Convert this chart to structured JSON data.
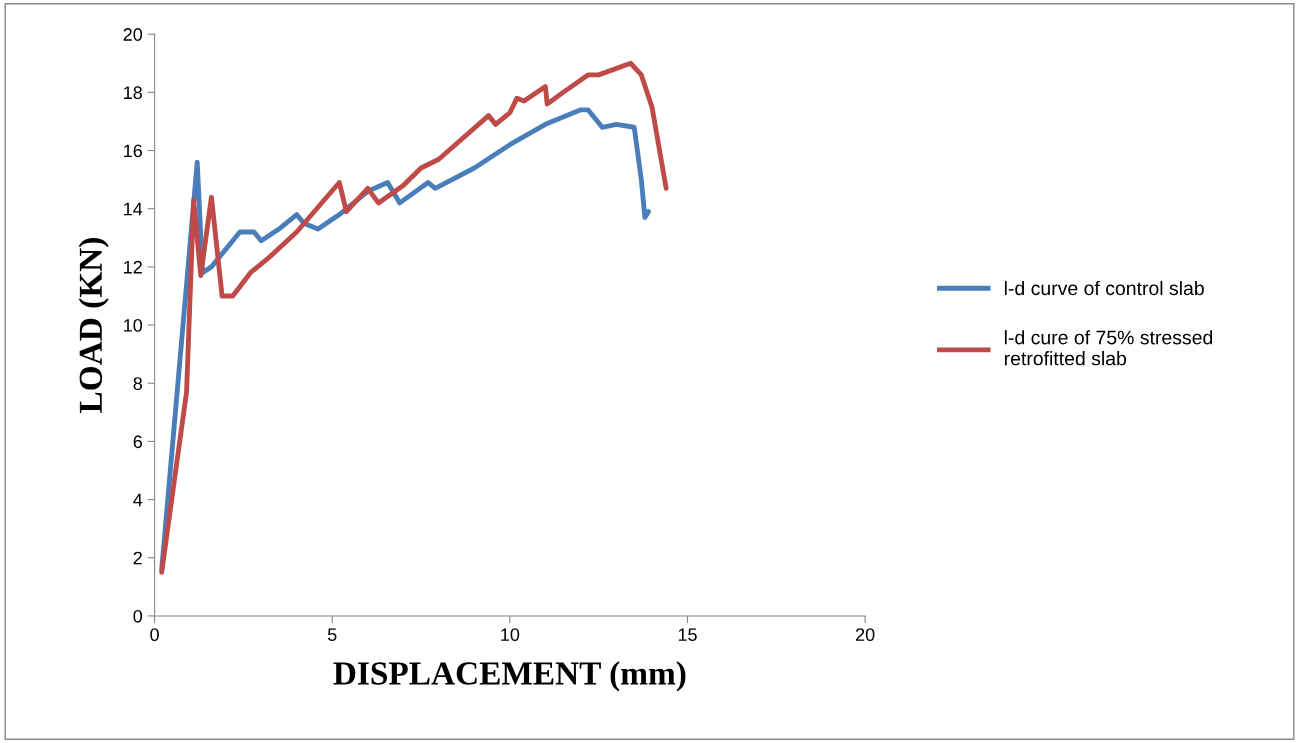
{
  "chart_data": {
    "type": "line",
    "xlabel": "DISPLACEMENT (mm)",
    "ylabel": "LOAD (KN)",
    "xlim": [
      0,
      20
    ],
    "ylim": [
      0,
      20
    ],
    "xticks": [
      0,
      5,
      10,
      15,
      20
    ],
    "yticks": [
      0,
      2,
      4,
      6,
      8,
      10,
      12,
      14,
      16,
      18,
      20
    ],
    "grid": false,
    "legend": "right",
    "marker": "none",
    "line_style": "solid",
    "series": [
      {
        "name": "l-d curve of control slab",
        "color": "#4a7ebb",
        "x": [
          0.2,
          1.2,
          1.35,
          1.6,
          2.0,
          2.4,
          2.8,
          3.0,
          3.5,
          4.0,
          4.2,
          4.6,
          5.2,
          6.0,
          6.56,
          6.9,
          7.7,
          7.9,
          9.0,
          10.0,
          11.0,
          12.0,
          12.2,
          12.6,
          13.0,
          13.5,
          13.7,
          13.8,
          13.9
        ],
        "values": [
          1.6,
          15.6,
          11.8,
          12.0,
          12.6,
          13.2,
          13.2,
          12.9,
          13.3,
          13.8,
          13.5,
          13.3,
          13.8,
          14.6,
          14.9,
          14.2,
          14.9,
          14.7,
          15.4,
          16.2,
          16.9,
          17.4,
          17.4,
          16.8,
          16.9,
          16.8,
          15.0,
          13.7,
          13.9
        ]
      },
      {
        "name": "l-d cure of 75% stressed retrofitted slab",
        "color": "#be4b48",
        "x": [
          0.2,
          0.9,
          1.1,
          1.3,
          1.6,
          1.9,
          2.2,
          2.7,
          3.2,
          4.0,
          5.2,
          5.4,
          6.0,
          6.3,
          7.0,
          7.5,
          8.0,
          9.4,
          9.6,
          10.0,
          10.2,
          10.4,
          11.0,
          11.05,
          11.5,
          12.2,
          12.5,
          13.4,
          13.7,
          14.0,
          14.4
        ],
        "values": [
          1.5,
          7.7,
          14.3,
          11.7,
          14.4,
          11.0,
          11.0,
          11.8,
          12.3,
          13.2,
          14.9,
          13.9,
          14.7,
          14.2,
          14.8,
          15.4,
          15.7,
          17.2,
          16.9,
          17.3,
          17.8,
          17.7,
          18.2,
          17.6,
          18.0,
          18.6,
          18.6,
          19.0,
          18.6,
          17.5,
          14.7
        ]
      }
    ]
  }
}
